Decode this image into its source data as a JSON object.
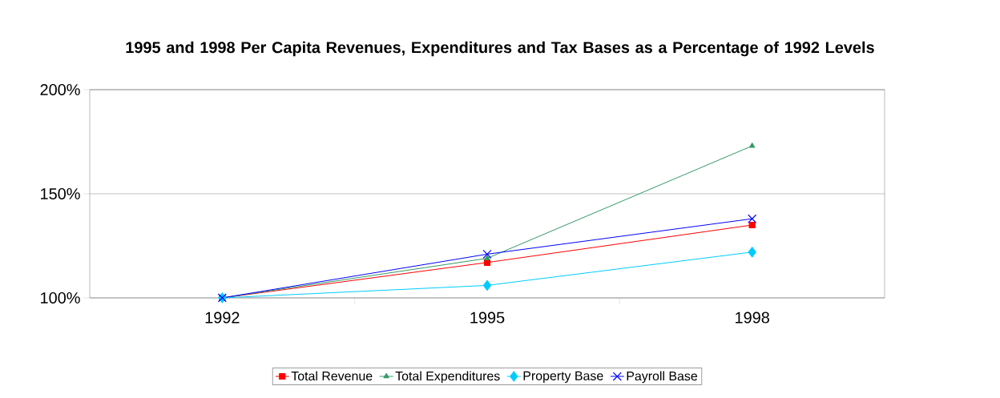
{
  "chart_data": {
    "type": "line",
    "title": "1995 and 1998 Per Capita Revenues, Expenditures and Tax Bases as a Percentage of 1992 Levels",
    "categories": [
      "1992",
      "1995",
      "1998"
    ],
    "series": [
      {
        "name": "Total Revenue",
        "color": "#ff0000",
        "marker": "square",
        "values": [
          100,
          117,
          135
        ]
      },
      {
        "name": "Total Expenditures",
        "color": "#339966",
        "marker": "triangle",
        "values": [
          100,
          119,
          173
        ]
      },
      {
        "name": "Property Base",
        "color": "#00ccff",
        "marker": "diamond",
        "values": [
          100,
          106,
          122
        ]
      },
      {
        "name": "Payroll Base",
        "color": "#0000ff",
        "marker": "cross",
        "values": [
          100,
          121,
          138
        ]
      }
    ],
    "ylim": [
      100,
      200
    ],
    "yticks": [
      {
        "value": 100,
        "label": "100%"
      },
      {
        "value": 150,
        "label": "150%"
      },
      {
        "value": 200,
        "label": "200%"
      }
    ],
    "grid": "y",
    "legend": "bottom"
  }
}
